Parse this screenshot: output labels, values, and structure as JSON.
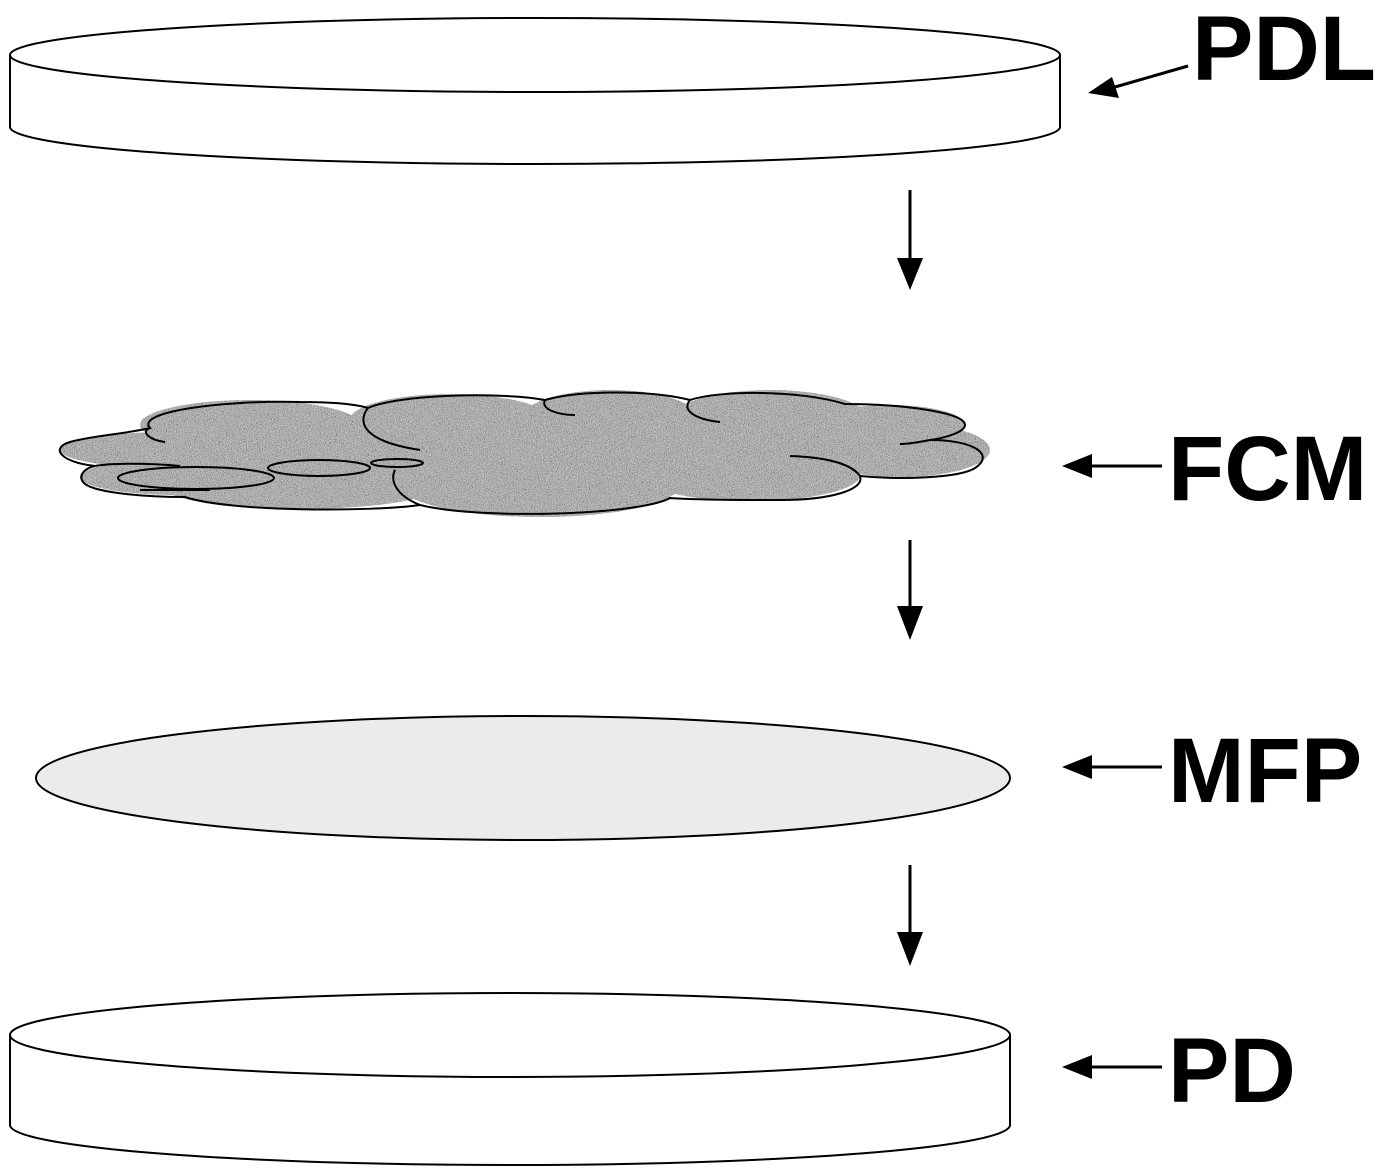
{
  "labels": {
    "top_lid": "PDL",
    "membrane": "FCM",
    "filter_paper": "MFP",
    "bottom_dish": "PD"
  },
  "colors": {
    "stroke": "#000000",
    "lid_fill": "#ffffff",
    "dish_fill": "#ffffff",
    "filter_paper_fill": "#ebebeb",
    "membrane_base": "#9a9a9a",
    "background": "#ffffff"
  }
}
